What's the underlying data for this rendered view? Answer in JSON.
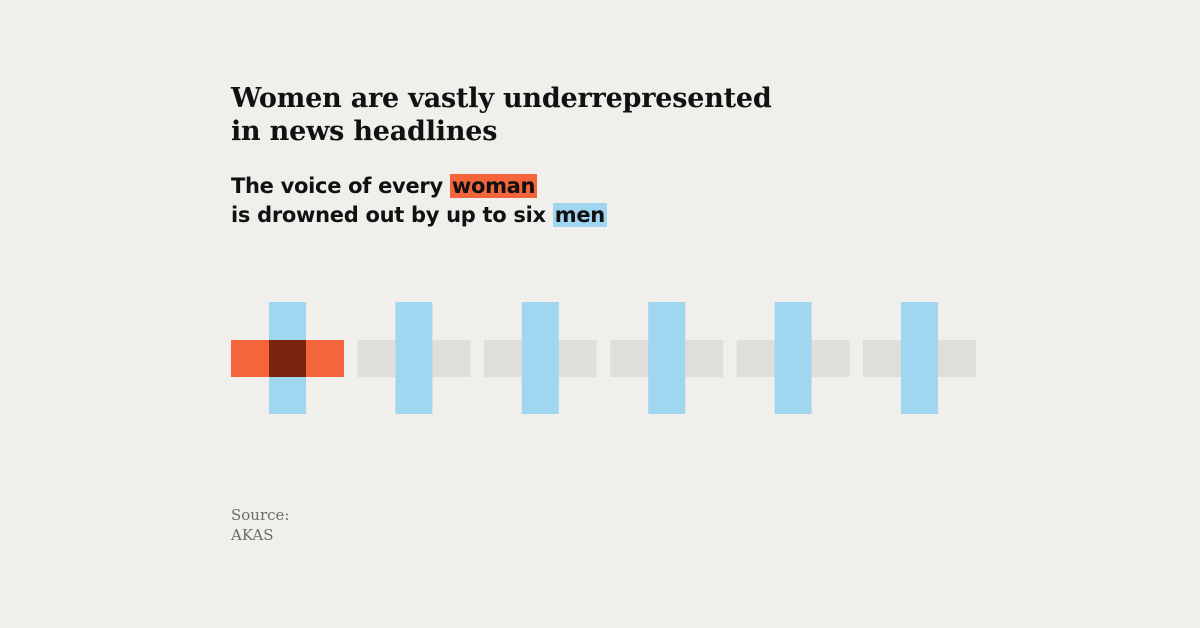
{
  "title": {
    "line1": "Women are vastly underrepresented",
    "line2": "in news headlines"
  },
  "subtitle": {
    "line1_prefix": "The voice of every ",
    "line1_highlight": "woman",
    "line2_prefix": "is drowned out by up to six ",
    "line2_highlight": "men"
  },
  "source": {
    "label": "Source:",
    "value": "AKAS"
  },
  "colors": {
    "background": "#f0efeb",
    "woman": "#f4653b",
    "men": "#a0d6ef",
    "overlap": "#7a2510",
    "placeholder": "#e0ded9"
  },
  "diagram": {
    "women_count": 1,
    "men_count": 6
  }
}
